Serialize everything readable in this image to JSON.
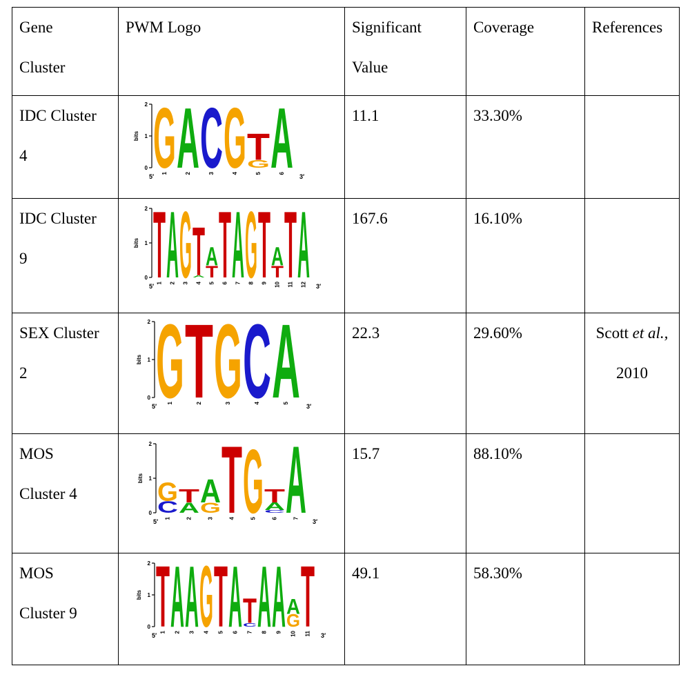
{
  "table": {
    "headers": {
      "gene_cluster": [
        "Gene",
        "Cluster"
      ],
      "pwm_logo": "PWM Logo",
      "significant_value": [
        "Significant",
        "Value"
      ],
      "coverage": "Coverage",
      "references": "References"
    },
    "rows": [
      {
        "gene_cluster": [
          "IDC Cluster",
          "4"
        ],
        "significant_value": "11.1",
        "coverage": "33.30%",
        "reference": {
          "author": "",
          "etal": "",
          "year": ""
        },
        "logo": {
          "axis_label": "bits",
          "y_ticks": [
            "0",
            "1",
            "2"
          ],
          "five_prime": "5′",
          "three_prime": "3′",
          "positions": [
            [
              [
                "G",
                1.95
              ]
            ],
            [
              [
                "A",
                1.95
              ]
            ],
            [
              [
                "C",
                1.95
              ]
            ],
            [
              [
                "G",
                1.95
              ]
            ],
            [
              [
                "G",
                0.25
              ],
              [
                "T",
                0.85
              ]
            ],
            [
              [
                "A",
                1.95
              ]
            ]
          ]
        }
      },
      {
        "gene_cluster": [
          "IDC Cluster",
          "9"
        ],
        "significant_value": "167.6",
        "coverage": "16.10%",
        "reference": {
          "author": "",
          "etal": "",
          "year": ""
        },
        "logo": {
          "axis_label": "bits",
          "y_ticks": [
            "0",
            "1",
            "2"
          ],
          "five_prime": "5′",
          "three_prime": "3′",
          "positions": [
            [
              [
                "T",
                1.98
              ]
            ],
            [
              [
                "A",
                1.98
              ]
            ],
            [
              [
                "G",
                1.98
              ]
            ],
            [
              [
                "A",
                0.06
              ],
              [
                "T",
                1.45
              ]
            ],
            [
              [
                "T",
                0.35
              ],
              [
                "A",
                0.55
              ]
            ],
            [
              [
                "T",
                1.98
              ]
            ],
            [
              [
                "A",
                1.98
              ]
            ],
            [
              [
                "G",
                1.98
              ]
            ],
            [
              [
                "T",
                1.98
              ]
            ],
            [
              [
                "T",
                0.35
              ],
              [
                "A",
                0.55
              ]
            ],
            [
              [
                "T",
                1.98
              ]
            ],
            [
              [
                "A",
                1.98
              ]
            ]
          ]
        }
      },
      {
        "gene_cluster": [
          "SEX Cluster",
          "2"
        ],
        "significant_value": "22.3",
        "coverage": "29.60%",
        "reference": {
          "author": "Scott",
          "etal": "et al.,",
          "year": "2010"
        },
        "logo": {
          "axis_label": "bits",
          "y_ticks": [
            "0",
            "1",
            "2"
          ],
          "five_prime": "5′",
          "three_prime": "3′",
          "positions": [
            [
              [
                "G",
                2.0
              ]
            ],
            [
              [
                "T",
                2.0
              ]
            ],
            [
              [
                "G",
                2.0
              ]
            ],
            [
              [
                "C",
                2.0
              ]
            ],
            [
              [
                "A",
                2.0
              ]
            ]
          ]
        }
      },
      {
        "gene_cluster": [
          "MOS",
          "Cluster 4"
        ],
        "significant_value": "15.7",
        "coverage": "88.10%",
        "reference": {
          "author": "",
          "etal": "",
          "year": ""
        },
        "logo": {
          "axis_label": "bits",
          "y_ticks": [
            "0",
            "1",
            "2"
          ],
          "five_prime": "5′",
          "three_prime": "3′",
          "positions": [
            [
              [
                "C",
                0.35
              ],
              [
                "G",
                0.55
              ]
            ],
            [
              [
                "A",
                0.3
              ],
              [
                "T",
                0.4
              ]
            ],
            [
              [
                "G",
                0.3
              ],
              [
                "A",
                0.7
              ]
            ],
            [
              [
                "T",
                2.0
              ]
            ],
            [
              [
                "G",
                1.9
              ]
            ],
            [
              [
                "C",
                0.08
              ],
              [
                "A",
                0.22
              ],
              [
                "T",
                0.4
              ]
            ],
            [
              [
                "A",
                2.0
              ]
            ]
          ]
        }
      },
      {
        "gene_cluster": [
          "MOS",
          "Cluster 9"
        ],
        "significant_value": "49.1",
        "coverage": "58.30%",
        "reference": {
          "author": "",
          "etal": "",
          "year": ""
        },
        "logo": {
          "axis_label": "bits",
          "y_ticks": [
            "0",
            "1",
            "2"
          ],
          "five_prime": "5′",
          "three_prime": "3′",
          "positions": [
            [
              [
                "T",
                1.98
              ]
            ],
            [
              [
                "A",
                1.98
              ]
            ],
            [
              [
                "A",
                1.98
              ]
            ],
            [
              [
                "G",
                1.98
              ]
            ],
            [
              [
                "T",
                1.98
              ]
            ],
            [
              [
                "A",
                1.98
              ]
            ],
            [
              [
                "C",
                0.12
              ],
              [
                "T",
                0.8
              ]
            ],
            [
              [
                "A",
                1.98
              ]
            ],
            [
              [
                "A",
                1.98
              ]
            ],
            [
              [
                "G",
                0.4
              ],
              [
                "A",
                0.5
              ]
            ],
            [
              [
                "T",
                1.98
              ]
            ]
          ]
        }
      }
    ]
  },
  "colors": {
    "A": "#0fac0f",
    "C": "#1a1acc",
    "G": "#f5a300",
    "T": "#cc0000"
  }
}
